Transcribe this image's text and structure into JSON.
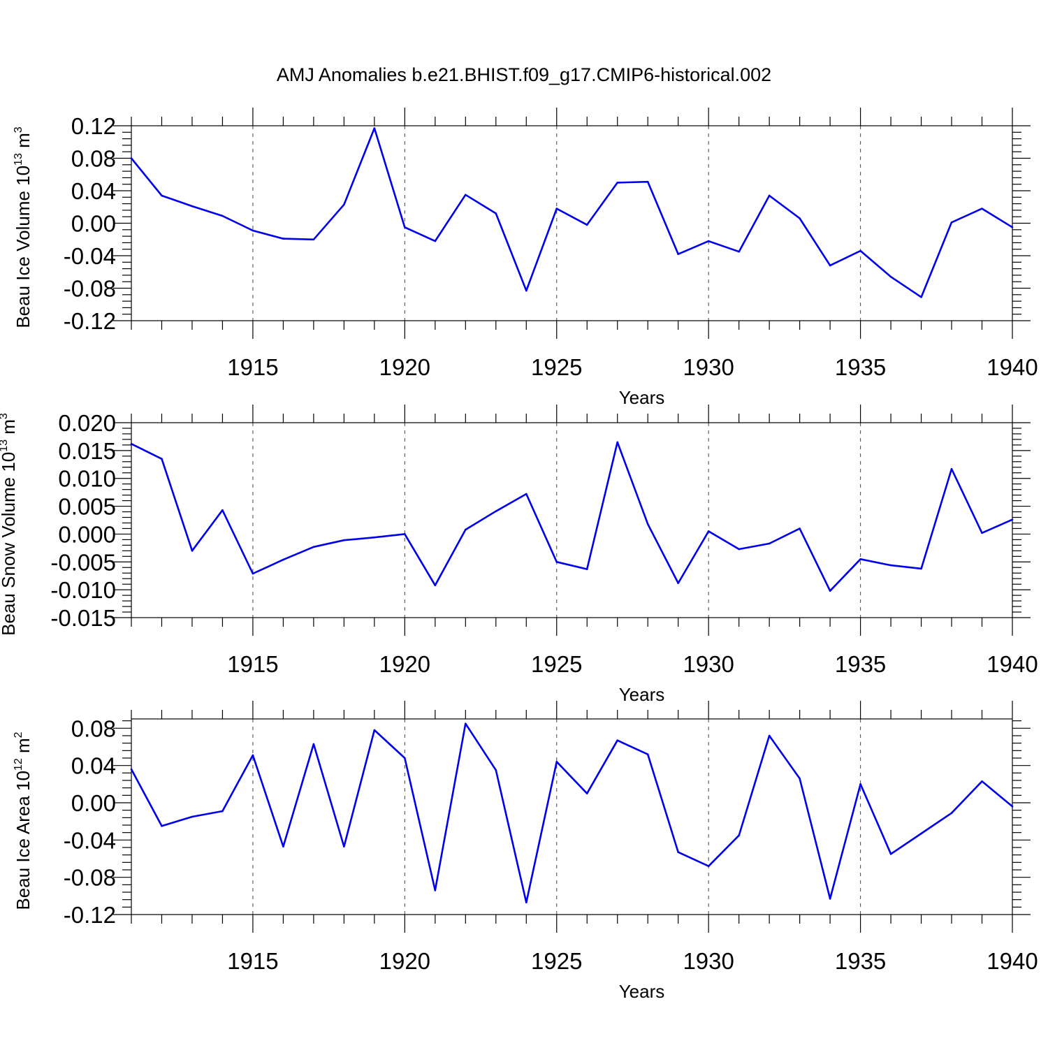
{
  "title": "AMJ Anomalies b.e21.BHIST.f09_g17.CMIP6-historical.002",
  "line_color": "#0000ee",
  "chart_data": [
    {
      "type": "line",
      "xlabel": "Years",
      "ylabel": "Beau Ice Volume 10",
      "ylabel_exp": "13",
      "ylabel_unit": "m",
      "ylabel_unit_exp": "3",
      "xlim": [
        1911,
        1940
      ],
      "ylim": [
        -0.12,
        0.12
      ],
      "xticks": [
        1915,
        1920,
        1925,
        1930,
        1935,
        1940
      ],
      "yticks": [
        "0.12",
        "0.08",
        "0.04",
        "0.00",
        "-0.04",
        "-0.08",
        "-0.12"
      ],
      "ytick_values": [
        0.12,
        0.08,
        0.04,
        0.0,
        -0.04,
        -0.08,
        -0.12
      ],
      "grid": "dashed vertical at major x ticks",
      "x": [
        1911,
        1912,
        1913,
        1914,
        1915,
        1916,
        1917,
        1918,
        1919,
        1920,
        1921,
        1922,
        1923,
        1924,
        1925,
        1926,
        1927,
        1928,
        1929,
        1930,
        1931,
        1932,
        1933,
        1934,
        1935,
        1936,
        1937,
        1938,
        1939,
        1940
      ],
      "values": [
        0.08,
        0.034,
        0.021,
        0.009,
        -0.009,
        -0.019,
        -0.02,
        0.023,
        0.117,
        -0.005,
        -0.022,
        0.035,
        0.012,
        -0.083,
        0.018,
        -0.002,
        0.05,
        0.051,
        -0.038,
        -0.022,
        -0.035,
        0.034,
        0.006,
        -0.052,
        -0.034,
        -0.066,
        -0.091,
        0.001,
        0.018,
        -0.005
      ]
    },
    {
      "type": "line",
      "xlabel": "Years",
      "ylabel": "Beau Snow Volume 10",
      "ylabel_exp": "13",
      "ylabel_unit": "m",
      "ylabel_unit_exp": "3",
      "xlim": [
        1911,
        1940
      ],
      "ylim": [
        -0.015,
        0.02
      ],
      "xticks": [
        1915,
        1920,
        1925,
        1930,
        1935,
        1940
      ],
      "yticks": [
        "0.020",
        "0.015",
        "0.010",
        "0.005",
        "0.000",
        "-0.005",
        "-0.010",
        "-0.015"
      ],
      "ytick_values": [
        0.02,
        0.015,
        0.01,
        0.005,
        0.0,
        -0.005,
        -0.01,
        -0.015
      ],
      "grid": "dashed vertical at major x ticks",
      "x": [
        1911,
        1912,
        1913,
        1914,
        1915,
        1916,
        1917,
        1918,
        1919,
        1920,
        1921,
        1922,
        1923,
        1924,
        1925,
        1926,
        1927,
        1928,
        1929,
        1930,
        1931,
        1932,
        1933,
        1934,
        1935,
        1936,
        1937,
        1938,
        1939,
        1940
      ],
      "values": [
        0.0162,
        0.0135,
        -0.003,
        0.0043,
        -0.0071,
        -0.0046,
        -0.0023,
        -0.0011,
        -0.0006,
        0.0,
        -0.0092,
        0.0008,
        0.0041,
        0.0072,
        -0.005,
        -0.0063,
        0.0165,
        0.0018,
        -0.0088,
        0.0005,
        -0.0027,
        -0.0017,
        0.001,
        -0.0102,
        -0.0045,
        -0.0056,
        -0.0062,
        0.0117,
        0.0002,
        0.0026
      ]
    },
    {
      "type": "line",
      "xlabel": "Years",
      "ylabel": "Beau Ice Area 10",
      "ylabel_exp": "12",
      "ylabel_unit": "m",
      "ylabel_unit_exp": "2",
      "xlim": [
        1911,
        1940
      ],
      "ylim": [
        -0.12,
        0.09
      ],
      "xticks": [
        1915,
        1920,
        1925,
        1930,
        1935,
        1940
      ],
      "yticks": [
        "0.08",
        "0.04",
        "0.00",
        "-0.04",
        "-0.08",
        "-0.12"
      ],
      "ytick_values": [
        0.08,
        0.04,
        0.0,
        -0.04,
        -0.08,
        -0.12
      ],
      "grid": "dashed vertical at major x ticks",
      "x": [
        1911,
        1912,
        1913,
        1914,
        1915,
        1916,
        1917,
        1918,
        1919,
        1920,
        1921,
        1922,
        1923,
        1924,
        1925,
        1926,
        1927,
        1928,
        1929,
        1930,
        1931,
        1932,
        1933,
        1934,
        1935,
        1936,
        1937,
        1938,
        1939,
        1940
      ],
      "values": [
        0.036,
        -0.025,
        -0.015,
        -0.009,
        0.051,
        -0.047,
        0.063,
        -0.047,
        0.078,
        0.048,
        -0.094,
        0.085,
        0.035,
        -0.107,
        0.044,
        0.01,
        0.067,
        0.052,
        -0.053,
        -0.068,
        -0.035,
        0.072,
        0.026,
        -0.103,
        0.02,
        -0.055,
        -0.033,
        -0.011,
        0.023,
        -0.004
      ]
    }
  ]
}
